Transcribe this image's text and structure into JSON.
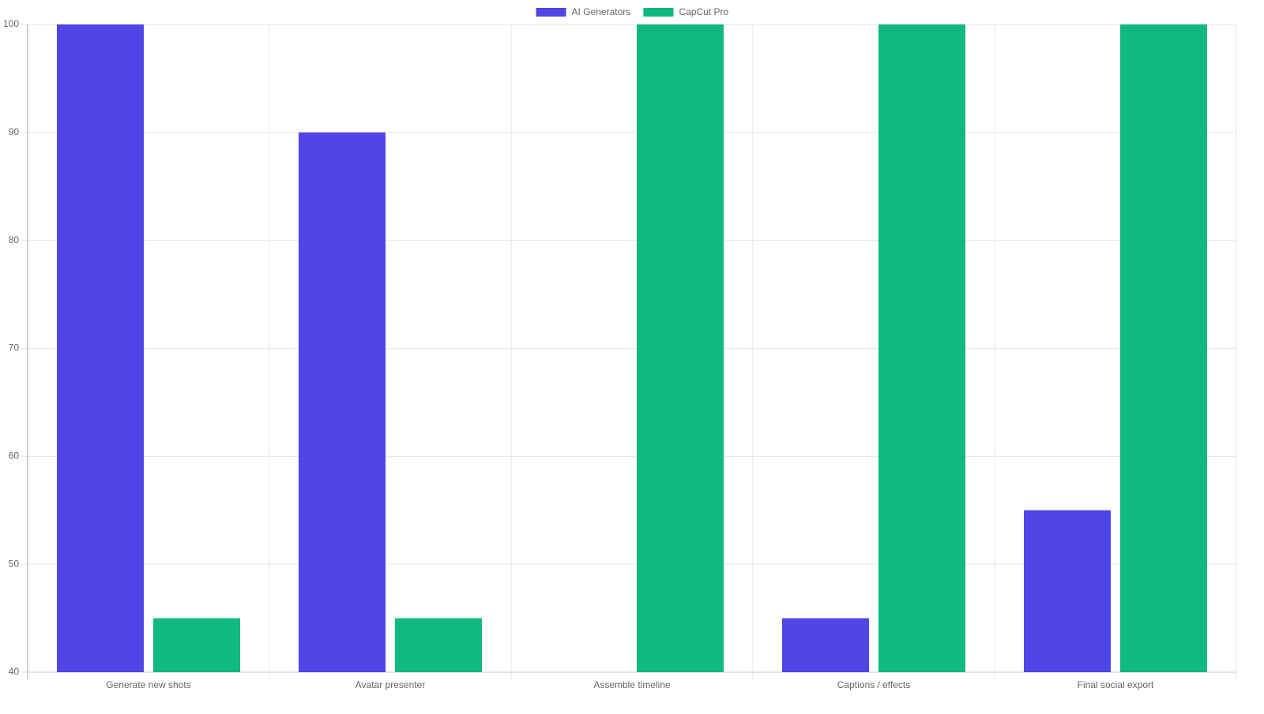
{
  "chart_data": {
    "type": "bar",
    "categories": [
      "Generate new shots",
      "Avatar presenter",
      "Assemble timeline",
      "Captions / effects",
      "Final social export"
    ],
    "series": [
      {
        "name": "AI Generators",
        "color": "#4f46e5",
        "values": [
          100,
          90,
          40,
          45,
          55
        ]
      },
      {
        "name": "CapCut Pro",
        "color": "#10b981",
        "values": [
          45,
          45,
          100,
          100,
          100
        ]
      }
    ],
    "ylim": [
      40,
      100
    ],
    "yticks": [
      40,
      50,
      60,
      70,
      80,
      90,
      100
    ],
    "grid": true,
    "legend": "top"
  }
}
